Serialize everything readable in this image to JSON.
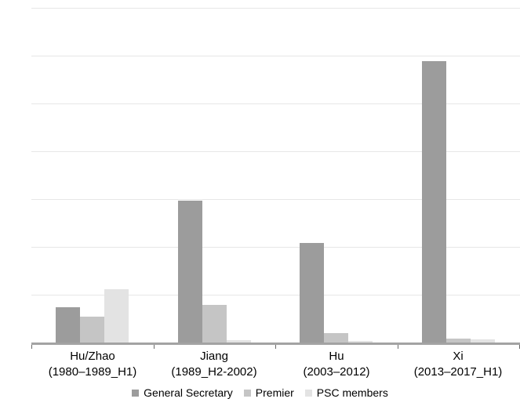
{
  "chart_data": {
    "type": "bar",
    "title": "",
    "xlabel": "",
    "ylabel": "",
    "categories": [
      [
        "Hu/Zhao",
        "(1980–1989_H1)"
      ],
      [
        "Jiang",
        "(1989_H2-2002)"
      ],
      [
        "Hu",
        "(2003–2012)"
      ],
      [
        "Xi",
        "(2013–2017_H1)"
      ]
    ],
    "series": [
      {
        "name": "General Secretary",
        "color": "#9c9c9c",
        "values": [
          14.6,
          59.29,
          41.8,
          117.8
        ],
        "labels": [
          "14.6",
          "59.29",
          "41.8",
          "117.8"
        ]
      },
      {
        "name": "Premier",
        "color": "#c5c5c5",
        "values": [
          10.9,
          15.79,
          4,
          1.6
        ],
        "labels": [
          "10.9",
          "15.79",
          "4",
          "1.6"
        ]
      },
      {
        "name": "PSC members",
        "color": "#e3e3e3",
        "values": [
          22.2,
          1.0,
          0.5,
          1.4
        ],
        "labels": [
          "22.2",
          "1.00",
          "0.5",
          "1.4"
        ]
      }
    ],
    "ylim": [
      0,
      140
    ],
    "yticks": [
      0,
      20,
      40,
      60,
      80,
      100,
      120,
      140
    ],
    "grid": true,
    "legend_position": "bottom"
  },
  "colors": {
    "background": "#ffffff",
    "gridline": "#e7e7e7",
    "axis_line": "#a3a3a3",
    "tick": "#6b6b6b",
    "text": "#000000"
  }
}
